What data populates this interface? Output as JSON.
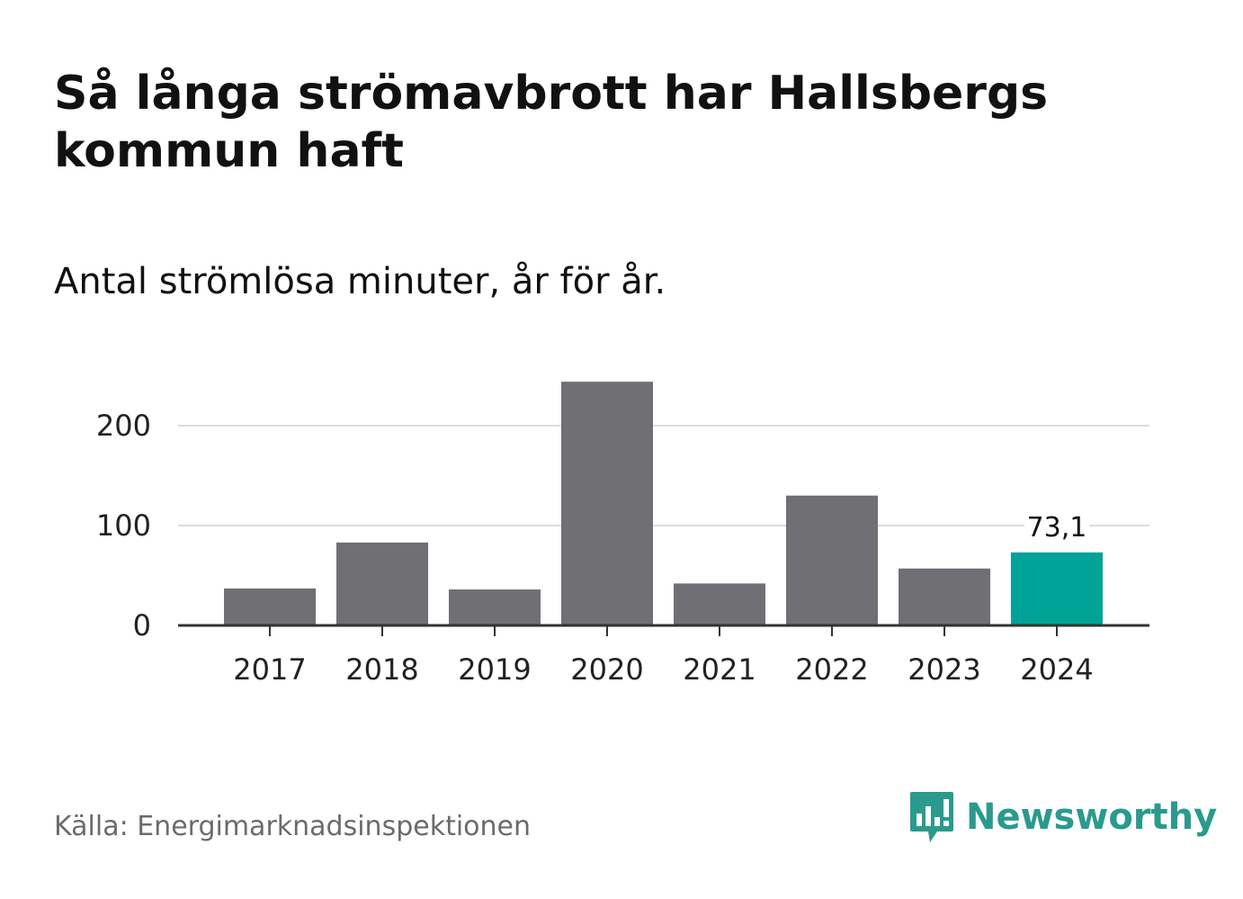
{
  "header": {
    "title": "Så långa strömavbrott har Hallsbergs kommun haft",
    "subtitle": "Antal strömlösa minuter, år för år."
  },
  "footer": {
    "source": "Källa: Energimarknadsinspektionen",
    "brand": "Newsworthy",
    "logo_icon": "bar-chart-speech-bubble-icon"
  },
  "colors": {
    "bar": "#706f74",
    "highlight": "#00a398",
    "grid": "#dcdcdc",
    "axis": "#333333",
    "brand": "#2b9a8e"
  },
  "chart_data": {
    "type": "bar",
    "categories": [
      "2017",
      "2018",
      "2019",
      "2020",
      "2021",
      "2022",
      "2023",
      "2024"
    ],
    "values": [
      37,
      83,
      36,
      244,
      42,
      130,
      57,
      73.1
    ],
    "highlight_index": 7,
    "data_labels": [
      {
        "index": 7,
        "text": "73,1"
      }
    ],
    "yticks": [
      0,
      100,
      200
    ],
    "ylim": [
      0,
      250
    ],
    "grid": true,
    "title": "Så långa strömavbrott har Hallsbergs kommun haft",
    "subtitle": "Antal strömlösa minuter, år för år.",
    "xlabel": "",
    "ylabel": ""
  }
}
